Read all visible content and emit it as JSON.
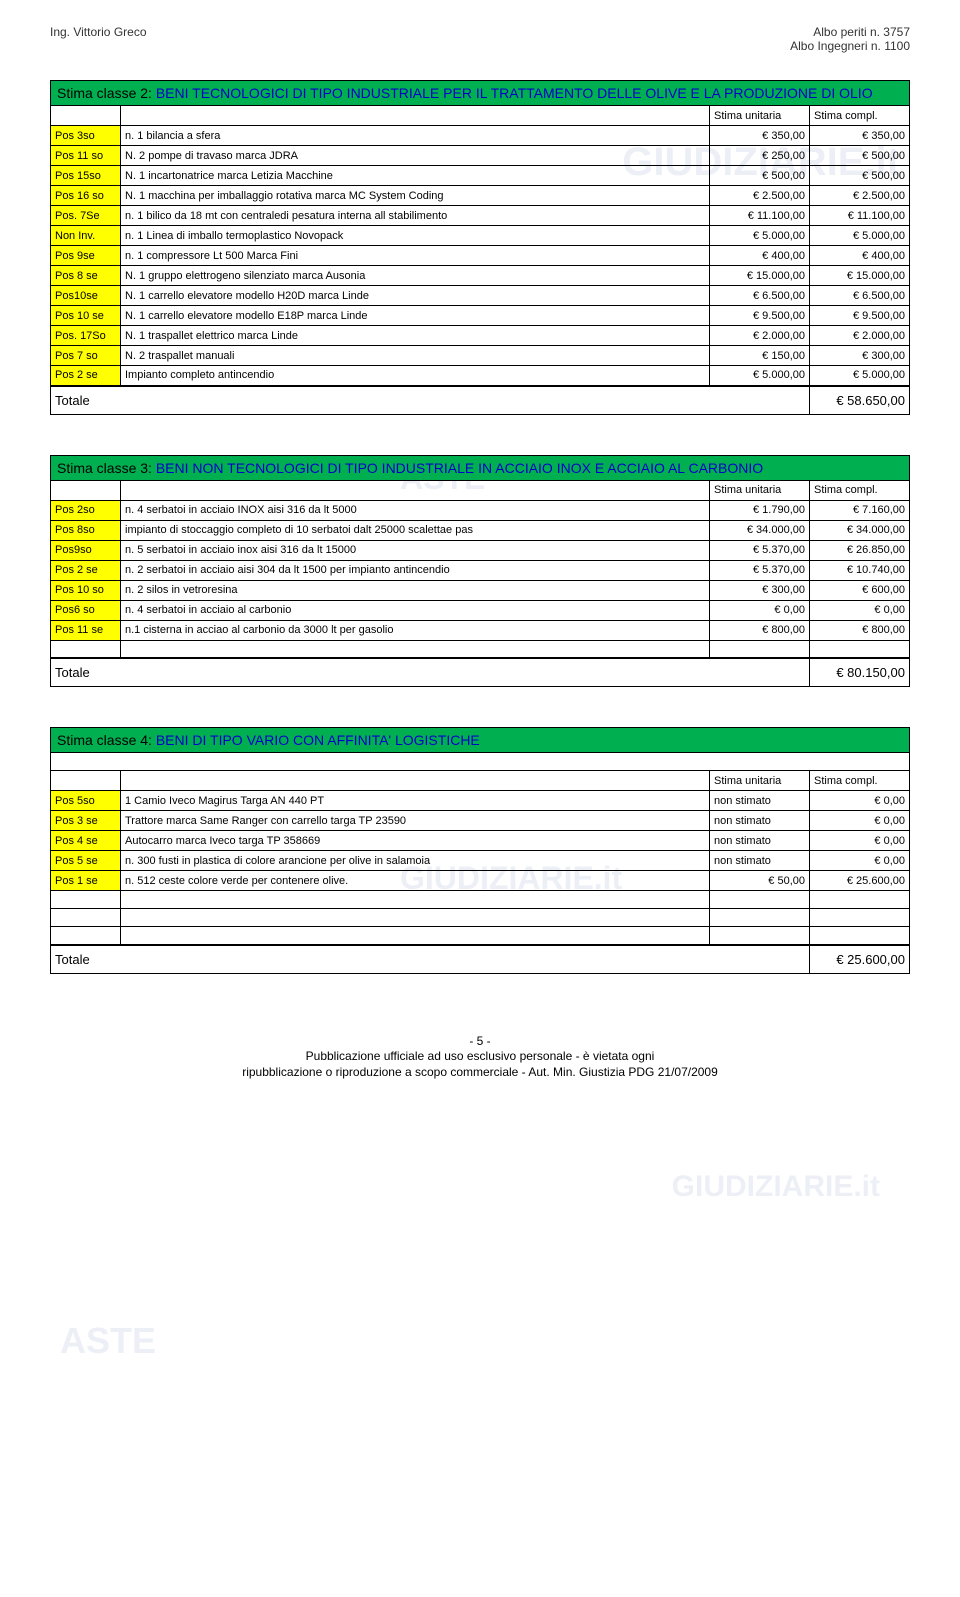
{
  "header": {
    "left": "Ing. Vittorio Greco",
    "right1": "Albo periti n. 3757",
    "right2": "Albo Ingegneri n. 1100"
  },
  "watermarks": {
    "text1": "GIUDIZIARIE.it",
    "text2": "ASTE",
    "text3": "GIUDIZIARIE.it",
    "text4": "GIUDIZIARIE.it",
    "text5": "ASTE"
  },
  "tables": [
    {
      "title_prefix": "Stima classe 2:",
      "title_main": "BENI TECNOLOGICI DI TIPO INDUSTRIALE PER IL TRATTAMENTO DELLE OLIVE E LA PRODUZIONE DI OLIO",
      "col_unit": "Stima unitaria",
      "col_compl": "Stima compl.",
      "rows": [
        {
          "pos": "Pos 3so",
          "desc": "n. 1 bilancia a sfera",
          "unit": "€ 350,00",
          "compl": "€ 350,00"
        },
        {
          "pos": "Pos 11 so",
          "desc": "N. 2 pompe di travaso marca JDRA",
          "unit": "€ 250,00",
          "compl": "€ 500,00"
        },
        {
          "pos": "Pos 15so",
          "desc": "N. 1 incartonatrice marca Letizia Macchine",
          "unit": "€ 500,00",
          "compl": "€ 500,00"
        },
        {
          "pos": "Pos 16 so",
          "desc": "N. 1 macchina per imballaggio rotativa marca MC System Coding",
          "unit": "€ 2.500,00",
          "compl": "€ 2.500,00"
        },
        {
          "pos": "Pos. 7Se",
          "desc": "n. 1 bilico da 18 mt con centraledi pesatura interna all stabilimento",
          "unit": "€ 11.100,00",
          "compl": "€ 11.100,00"
        },
        {
          "pos": "Non Inv.",
          "desc": "n. 1 Linea di imballo termoplastico Novopack",
          "unit": "€ 5.000,00",
          "compl": "€ 5.000,00"
        },
        {
          "pos": "Pos 9se",
          "desc": "n. 1 compressore Lt 500 Marca Fini",
          "unit": "€ 400,00",
          "compl": "€ 400,00"
        },
        {
          "pos": "Pos 8 se",
          "desc": "N. 1 gruppo elettrogeno silenziato marca Ausonia",
          "unit": "€ 15.000,00",
          "compl": "€ 15.000,00"
        },
        {
          "pos": "Pos10se",
          "desc": "N. 1 carrello elevatore modello H20D marca Linde",
          "unit": "€ 6.500,00",
          "compl": "€ 6.500,00"
        },
        {
          "pos": "Pos 10 se",
          "desc": "N. 1 carrello elevatore modello E18P marca Linde",
          "unit": "€ 9.500,00",
          "compl": "€ 9.500,00"
        },
        {
          "pos": "Pos. 17So",
          "desc": "N. 1 traspallet elettrico marca Linde",
          "unit": "€ 2.000,00",
          "compl": "€ 2.000,00"
        },
        {
          "pos": "Pos 7 so",
          "desc": "N. 2 traspallet manuali",
          "unit": "€ 150,00",
          "compl": "€ 300,00"
        },
        {
          "pos": "Pos 2 se",
          "desc": "Impianto completo antincendio",
          "unit": "€ 5.000,00",
          "compl": "€ 5.000,00"
        }
      ],
      "total_label": "Totale",
      "total_value": "€ 58.650,00"
    },
    {
      "title_prefix": "Stima classe 3:",
      "title_main": "BENI NON TECNOLOGICI DI TIPO INDUSTRIALE IN ACCIAIO INOX E ACCIAIO AL CARBONIO",
      "col_unit": "Stima unitaria",
      "col_compl": "Stima compl.",
      "rows": [
        {
          "pos": "Pos 2so",
          "desc": "n. 4 serbatoi in acciaio INOX aisi 316 da lt 5000",
          "unit": "€ 1.790,00",
          "compl": "€ 7.160,00"
        },
        {
          "pos": "Pos 8so",
          "desc": "impianto di stoccaggio completo di 10 serbatoi dalt 25000 scalettae pas",
          "unit": "€ 34.000,00",
          "compl": "€ 34.000,00"
        },
        {
          "pos": "Pos9so",
          "desc": "n. 5 serbatoi in acciaio inox aisi 316 da lt 15000",
          "unit": "€ 5.370,00",
          "compl": "€ 26.850,00"
        },
        {
          "pos": "Pos 2 se",
          "desc": "n. 2 serbatoi in acciaio aisi 304 da lt 1500 per impianto antincendio",
          "unit": "€ 5.370,00",
          "compl": "€ 10.740,00"
        },
        {
          "pos": "Pos 10 so",
          "desc": "n. 2 silos in vetroresina",
          "unit": "€ 300,00",
          "compl": "€ 600,00"
        },
        {
          "pos": "Pos6 so",
          "desc": "n. 4 serbatoi in acciaio al carbonio",
          "unit": "€ 0,00",
          "compl": "€ 0,00"
        },
        {
          "pos": "Pos 11 se",
          "desc": "n.1 cisterna in acciao al carbonio da 3000 lt per gasolio",
          "unit": "€ 800,00",
          "compl": "€ 800,00"
        }
      ],
      "empty_rows": 1,
      "total_label": "Totale",
      "total_value": "€ 80.150,00"
    },
    {
      "title_prefix": "Stima classe 4:",
      "title_main": "BENI DI TIPO VARIO CON AFFINITA' LOGISTICHE",
      "col_unit": "Stima unitaria",
      "col_compl": "Stima compl.",
      "spacer_after_title": true,
      "rows": [
        {
          "pos": "Pos 5so",
          "desc": "1 Camio Iveco Magirus Targa AN 440 PT",
          "unit": "non stimato",
          "compl": "€ 0,00"
        },
        {
          "pos": "Pos 3 se",
          "desc": "Trattore marca Same Ranger con carrello targa TP 23590",
          "unit": "non stimato",
          "compl": "€ 0,00"
        },
        {
          "pos": "Pos 4 se",
          "desc": "Autocarro marca Iveco targa TP 358669",
          "unit": "non stimato",
          "compl": "€ 0,00"
        },
        {
          "pos": "Pos 5 se",
          "desc": "n. 300 fusti in plastica  di colore arancione per olive in salamoia",
          "unit": "non stimato",
          "compl": "€ 0,00"
        },
        {
          "pos": "Pos 1 se",
          "desc": "n. 512 ceste colore verde per contenere olive.",
          "unit": "€ 50,00",
          "compl": "€ 25.600,00"
        }
      ],
      "empty_rows": 3,
      "total_label": "Totale",
      "total_value": "€ 25.600,00"
    }
  ],
  "footer": {
    "page": "- 5 -",
    "line1": "Pubblicazione ufficiale ad uso esclusivo personale - è vietata ogni",
    "line2": "ripubblicazione o riproduzione a scopo commerciale - Aut. Min. Giustizia PDG 21/07/2009"
  }
}
